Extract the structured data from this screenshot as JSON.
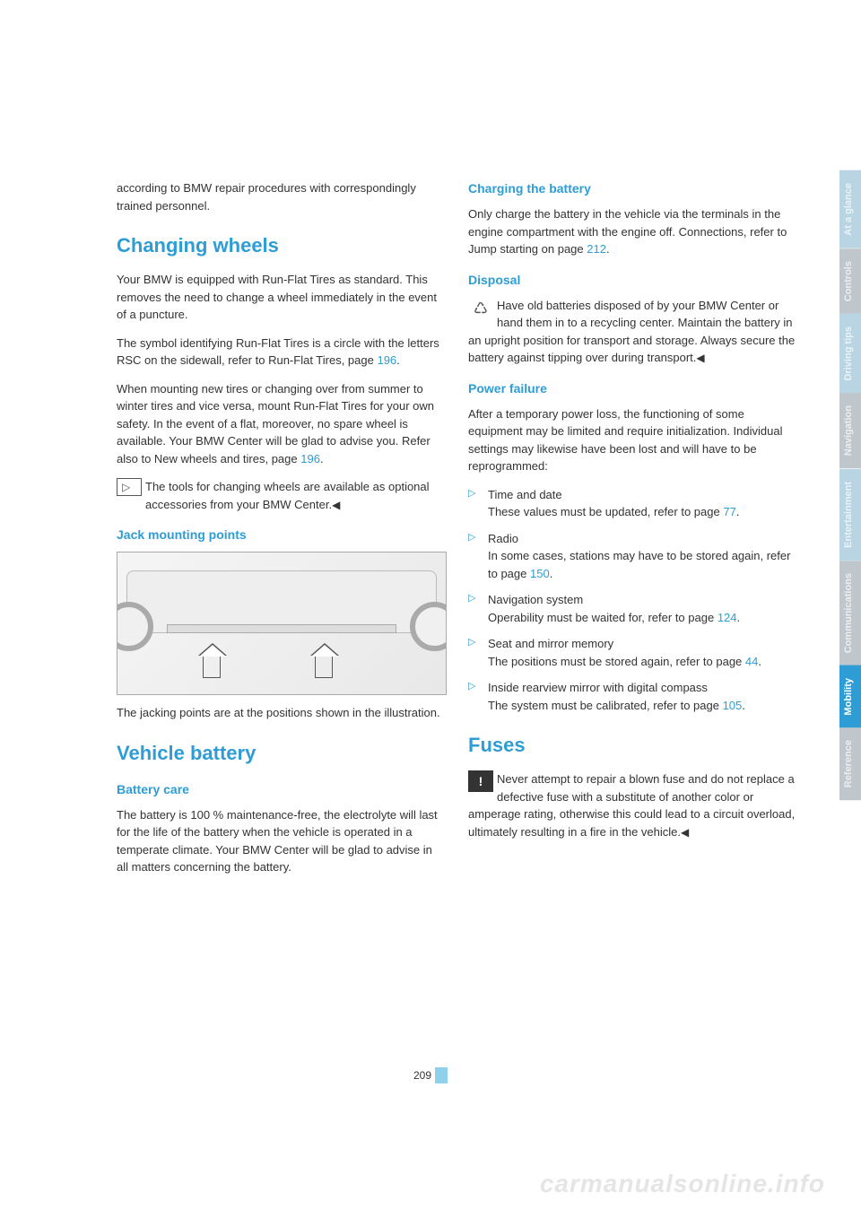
{
  "page_number": "209",
  "watermark": "carmanualsonline.info",
  "colors": {
    "accent": "#2e9dd6",
    "tab_inactive_bg": "#c0c7cc",
    "tab_active_bg": "#2e9dd6"
  },
  "tabs": [
    {
      "label": "At a glance",
      "bg": "#b9d5e3"
    },
    {
      "label": "Controls",
      "bg": "#c0c7cc"
    },
    {
      "label": "Driving tips",
      "bg": "#b9d5e3"
    },
    {
      "label": "Navigation",
      "bg": "#c0c7cc"
    },
    {
      "label": "Entertainment",
      "bg": "#b9d5e3"
    },
    {
      "label": "Communications",
      "bg": "#c0c7cc"
    },
    {
      "label": "Mobility",
      "bg": "#2e9dd6",
      "active": true
    },
    {
      "label": "Reference",
      "bg": "#c0c7cc"
    }
  ],
  "left": {
    "intro": "according to BMW repair procedures with correspondingly trained personnel.",
    "h1": "Changing wheels",
    "p1": "Your BMW is equipped with Run-Flat Tires as standard. This removes the need to change a wheel immediately in the event of a puncture.",
    "p2a": "The symbol identifying Run-Flat Tires is a circle with the letters RSC on the sidewall, refer to Run-Flat Tires, page ",
    "p2link": "196",
    "p2b": ".",
    "p3a": "When mounting new tires or changing over from summer to winter tires and vice versa, mount Run-Flat Tires for your own safety. In the event of a flat, moreover, no spare wheel is available. Your BMW Center will be glad to advise you. Refer also to New wheels and tires, page ",
    "p3link": "196",
    "p3b": ".",
    "note": "The tools for changing wheels are available as optional accessories from your BMW Center.",
    "h2": "Jack mounting points",
    "caption": "The jacking points are at the positions shown in the illustration.",
    "h3": "Vehicle battery",
    "h4": "Battery care",
    "p4": "The battery is 100 % maintenance-free, the electrolyte will last for the life of the battery when the vehicle is operated in a temperate climate. Your BMW Center will be glad to advise in all matters concerning the battery."
  },
  "right": {
    "h1": "Charging the battery",
    "p1a": "Only charge the battery in the vehicle via the terminals in the engine compartment with the engine off. Connections, refer to Jump starting on page ",
    "p1link": "212",
    "p1b": ".",
    "h2": "Disposal",
    "p2": "Have old batteries disposed of by your BMW Center or hand them in to a recycling center. Maintain the battery in an upright position for transport and storage. Always secure the battery against tipping over during transport.",
    "h3": "Power failure",
    "p3": "After a temporary power loss, the functioning of some equipment may be limited and require initialization. Individual settings may likewise have been lost and will have to be reprogrammed:",
    "items": [
      {
        "title": "Time and date",
        "body_a": "These values must be updated, refer to page ",
        "link": "77",
        "body_b": "."
      },
      {
        "title": "Radio",
        "body_a": "In some cases, stations may have to be stored again, refer to page ",
        "link": "150",
        "body_b": "."
      },
      {
        "title": "Navigation system",
        "body_a": "Operability must be waited for, refer to page ",
        "link": "124",
        "body_b": "."
      },
      {
        "title": "Seat and mirror memory",
        "body_a": "The positions must be stored again, refer to page ",
        "link": "44",
        "body_b": "."
      },
      {
        "title": "Inside rearview mirror with digital compass",
        "body_a": "The system must be calibrated, refer to page ",
        "link": "105",
        "body_b": "."
      }
    ],
    "h4": "Fuses",
    "warn": "Never attempt to repair a blown fuse and do not replace a defective fuse with a substitute of another color or amperage rating, otherwise this could lead to a circuit overload, ultimately resulting in a fire in the vehicle."
  }
}
